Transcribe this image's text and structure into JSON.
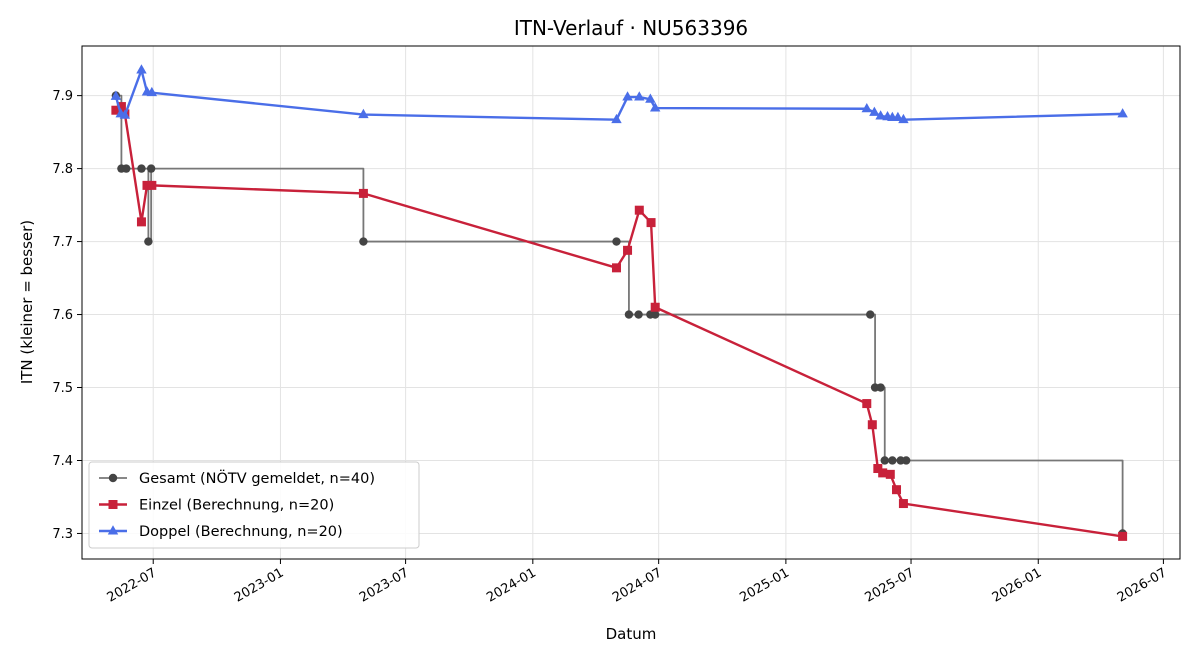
{
  "chart_data": {
    "type": "line",
    "title": "ITN-Verlauf · NU563396",
    "xlabel": "Datum",
    "ylabel": "ITN  (kleiner = besser)",
    "x_type": "date",
    "xlim": [
      "2022-03-20",
      "2026-07-25"
    ],
    "ylim": [
      7.265,
      7.968
    ],
    "x_ticks": [
      "2022-07",
      "2023-01",
      "2023-07",
      "2024-01",
      "2024-07",
      "2025-01",
      "2025-07",
      "2026-01",
      "2026-07"
    ],
    "y_ticks": [
      7.3,
      7.4,
      7.5,
      7.6,
      7.7,
      7.8,
      7.9
    ],
    "grid": true,
    "legend_position": "lower-left",
    "series": [
      {
        "name": "Gesamt (NÖTV gemeldet, n=40)",
        "color": "#777777",
        "marker_color": "#444444",
        "marker": "circle",
        "step": true,
        "points": [
          [
            "2022-05-08",
            7.9
          ],
          [
            "2022-05-16",
            7.8
          ],
          [
            "2022-05-23",
            7.8
          ],
          [
            "2022-06-14",
            7.8
          ],
          [
            "2022-06-24",
            7.7
          ],
          [
            "2022-06-28",
            7.8
          ],
          [
            "2023-05-01",
            7.7
          ],
          [
            "2024-05-01",
            7.7
          ],
          [
            "2024-05-19",
            7.6
          ],
          [
            "2024-06-02",
            7.6
          ],
          [
            "2024-06-19",
            7.6
          ],
          [
            "2024-06-26",
            7.6
          ],
          [
            "2025-05-03",
            7.6
          ],
          [
            "2025-05-10",
            7.5
          ],
          [
            "2025-05-18",
            7.5
          ],
          [
            "2025-05-24",
            7.4
          ],
          [
            "2025-06-04",
            7.4
          ],
          [
            "2025-06-16",
            7.4
          ],
          [
            "2025-06-24",
            7.4
          ],
          [
            "2026-05-03",
            7.3
          ]
        ]
      },
      {
        "name": "Einzel (Berechnung, n=20)",
        "color": "#c8213a",
        "marker": "square",
        "step": false,
        "points": [
          [
            "2022-05-08",
            7.88
          ],
          [
            "2022-05-16",
            7.885
          ],
          [
            "2022-05-21",
            7.875
          ],
          [
            "2022-06-14",
            7.727
          ],
          [
            "2022-06-22",
            7.777
          ],
          [
            "2022-06-29",
            7.777
          ],
          [
            "2023-05-01",
            7.766
          ],
          [
            "2024-05-01",
            7.664
          ],
          [
            "2024-05-17",
            7.688
          ],
          [
            "2024-06-03",
            7.743
          ],
          [
            "2024-06-20",
            7.726
          ],
          [
            "2024-06-26",
            7.61
          ],
          [
            "2025-04-28",
            7.478
          ],
          [
            "2025-05-06",
            7.449
          ],
          [
            "2025-05-14",
            7.389
          ],
          [
            "2025-05-21",
            7.383
          ],
          [
            "2025-06-01",
            7.381
          ],
          [
            "2025-06-10",
            7.36
          ],
          [
            "2025-06-20",
            7.341
          ],
          [
            "2026-05-03",
            7.296
          ]
        ]
      },
      {
        "name": "Doppel (Berechnung, n=20)",
        "color": "#4a6ee8",
        "marker": "triangle",
        "step": false,
        "points": [
          [
            "2022-05-08",
            7.899
          ],
          [
            "2022-05-15",
            7.875
          ],
          [
            "2022-05-21",
            7.873
          ],
          [
            "2022-06-14",
            7.935
          ],
          [
            "2022-06-22",
            7.905
          ],
          [
            "2022-06-29",
            7.904
          ],
          [
            "2023-05-01",
            7.874
          ],
          [
            "2024-05-01",
            7.867
          ],
          [
            "2024-05-17",
            7.898
          ],
          [
            "2024-06-03",
            7.898
          ],
          [
            "2024-06-19",
            7.895
          ],
          [
            "2024-06-26",
            7.883
          ],
          [
            "2025-04-28",
            7.882
          ],
          [
            "2025-05-09",
            7.877
          ],
          [
            "2025-05-18",
            7.872
          ],
          [
            "2025-05-28",
            7.871
          ],
          [
            "2025-06-04",
            7.87
          ],
          [
            "2025-06-12",
            7.87
          ],
          [
            "2025-06-20",
            7.867
          ],
          [
            "2026-05-03",
            7.875
          ]
        ]
      }
    ]
  }
}
